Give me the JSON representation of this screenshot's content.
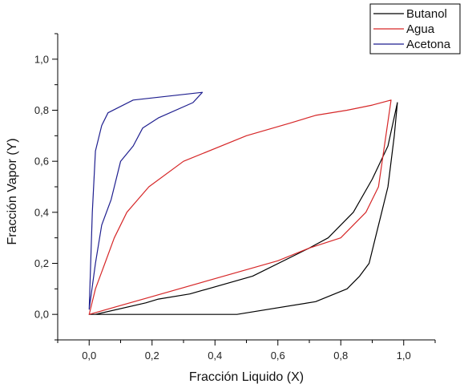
{
  "chart_data": {
    "type": "line",
    "title": "",
    "xlabel": "Fracción Liquido (X)",
    "ylabel": "Fracción Vapor (Y)",
    "xlim": [
      -0.1,
      1.1
    ],
    "ylim": [
      -0.1,
      1.1
    ],
    "xticks": [
      0.0,
      0.2,
      0.4,
      0.6,
      0.8,
      1.0
    ],
    "yticks": [
      0.0,
      0.2,
      0.4,
      0.6,
      0.8,
      1.0
    ],
    "xtick_labels": [
      "0,0",
      "0,2",
      "0,4",
      "0,6",
      "0,8",
      "1,0"
    ],
    "ytick_labels": [
      "0,0",
      "0,2",
      "0,4",
      "0,6",
      "0,8",
      "1,0"
    ],
    "grid": false,
    "legend_position": "top-right outside",
    "series": [
      {
        "name": "Butanol",
        "color": "#000000",
        "x": [
          0.02,
          0.18,
          0.22,
          0.32,
          0.52,
          0.7,
          0.76,
          0.84,
          0.9,
          0.95,
          0.98,
          0.97,
          0.95,
          0.93,
          0.91,
          0.89,
          0.86,
          0.82,
          0.72,
          0.47,
          0.2,
          0.0
        ],
        "y": [
          0.0,
          0.045,
          0.06,
          0.08,
          0.15,
          0.26,
          0.3,
          0.4,
          0.53,
          0.66,
          0.83,
          0.7,
          0.5,
          0.4,
          0.3,
          0.2,
          0.15,
          0.1,
          0.05,
          0.0,
          0.0,
          0.0
        ]
      },
      {
        "name": "Agua",
        "color": "#d62728",
        "x": [
          0.0,
          0.2,
          0.4,
          0.6,
          0.7,
          0.8,
          0.88,
          0.92,
          0.96,
          0.9,
          0.82,
          0.72,
          0.64,
          0.5,
          0.3,
          0.19,
          0.12,
          0.08,
          0.05,
          0.02,
          0.0
        ],
        "y": [
          0.0,
          0.07,
          0.14,
          0.21,
          0.26,
          0.3,
          0.4,
          0.5,
          0.84,
          0.82,
          0.8,
          0.78,
          0.75,
          0.7,
          0.6,
          0.5,
          0.4,
          0.3,
          0.2,
          0.1,
          0.0
        ]
      },
      {
        "name": "Acetona",
        "color": "#1f1f8f",
        "x": [
          0.0,
          0.01,
          0.02,
          0.03,
          0.04,
          0.06,
          0.14,
          0.36,
          0.33,
          0.22,
          0.17,
          0.14,
          0.1,
          0.07,
          0.04,
          0.02,
          0.0
        ],
        "y": [
          0.02,
          0.4,
          0.64,
          0.69,
          0.74,
          0.79,
          0.84,
          0.87,
          0.83,
          0.77,
          0.73,
          0.66,
          0.6,
          0.45,
          0.35,
          0.2,
          0.02
        ]
      }
    ]
  }
}
